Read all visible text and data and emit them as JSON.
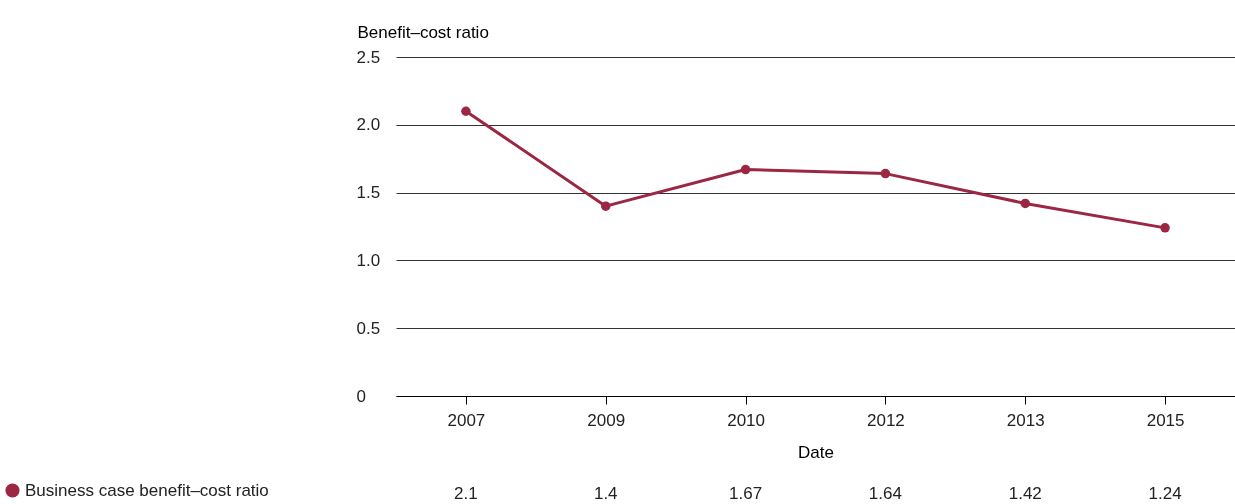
{
  "chart_data": {
    "type": "line",
    "xlabel": "Date",
    "ylabel": "Benefit–cost ratio",
    "categories": [
      "2007",
      "2009",
      "2010",
      "2012",
      "2013",
      "2015"
    ],
    "series": [
      {
        "name": "Business case benefit–cost ratio",
        "color": "#9b2743",
        "values": [
          2.1,
          1.4,
          1.67,
          1.64,
          1.42,
          1.24
        ]
      }
    ],
    "ylim": [
      0,
      2.5
    ],
    "yticks": [
      0,
      0.5,
      {
        "value": 1,
        "label": "1.0"
      },
      1.5,
      {
        "value": 2,
        "label": "2.0"
      },
      2.5
    ],
    "grid": "y",
    "legend": "bottom left",
    "marker": "circle",
    "line_style": "solid",
    "data_labels": true
  }
}
